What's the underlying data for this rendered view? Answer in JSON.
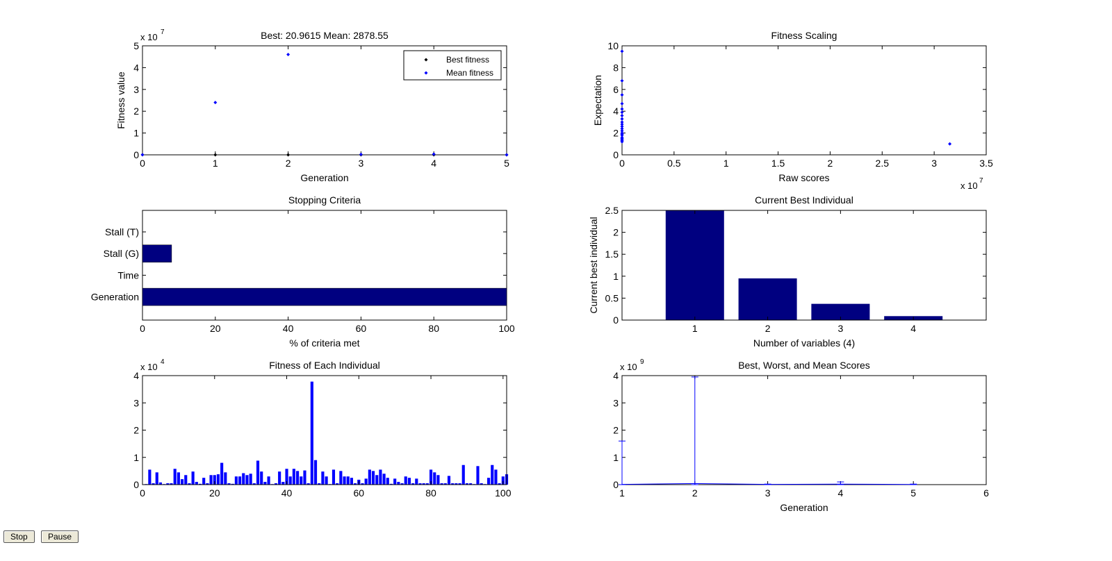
{
  "buttons": {
    "stop": "Stop",
    "pause": "Pause"
  },
  "chart_data": [
    {
      "id": "fitness-value",
      "type": "scatter",
      "title": "Best: 20.9615 Mean: 2878.55",
      "xlabel": "Generation",
      "ylabel": "Fitness value",
      "y_exponent_label": "x 10",
      "y_exponent": "7",
      "xlim": [
        0,
        5
      ],
      "ylim": [
        0,
        5
      ],
      "xticks": [
        0,
        1,
        2,
        3,
        4,
        5
      ],
      "yticks": [
        0,
        1,
        2,
        3,
        4,
        5
      ],
      "legend_position": "top-right",
      "series": [
        {
          "name": "Best fitness",
          "color": "#000000",
          "x": [
            0,
            1,
            2,
            3,
            4,
            5
          ],
          "y": [
            0.002,
            0.0,
            0.0,
            0.0,
            0.0,
            0.0
          ]
        },
        {
          "name": "Mean fitness",
          "color": "#0000ff",
          "x": [
            0,
            1,
            2,
            3,
            4,
            5
          ],
          "y": [
            0.002,
            2.4,
            4.6,
            0.02,
            0.03,
            0.0003
          ]
        }
      ]
    },
    {
      "id": "fitness-scaling",
      "type": "scatter",
      "title": "Fitness Scaling",
      "xlabel": "Raw scores",
      "ylabel": "Expectation",
      "x_exponent_label": "x 10",
      "x_exponent": "7",
      "xlim": [
        0,
        3.5
      ],
      "ylim": [
        0,
        10
      ],
      "xticks": [
        0,
        0.5,
        1,
        1.5,
        2,
        2.5,
        3,
        3.5
      ],
      "yticks": [
        0,
        2,
        4,
        6,
        8,
        10
      ],
      "color": "#0000ff",
      "x": [
        0,
        0,
        0,
        0,
        0,
        0,
        0,
        0,
        0,
        0,
        0,
        0,
        0,
        0,
        0,
        0,
        0,
        0,
        0,
        0,
        0,
        3.15
      ],
      "y": [
        9.5,
        6.8,
        5.5,
        4.7,
        4.2,
        3.9,
        3.6,
        3.3,
        3.0,
        2.8,
        2.6,
        2.4,
        2.2,
        2.0,
        1.9,
        1.8,
        1.6,
        1.5,
        1.4,
        1.3,
        1.2,
        1.0
      ]
    },
    {
      "id": "stopping-criteria",
      "type": "bar",
      "orientation": "horizontal",
      "title": "Stopping Criteria",
      "xlabel": "% of criteria met",
      "xlim": [
        0,
        100
      ],
      "xticks": [
        0,
        20,
        40,
        60,
        80,
        100
      ],
      "categories": [
        "Stall (T)",
        "Stall (G)",
        "Time",
        "Generation"
      ],
      "values": [
        0,
        8,
        0,
        100
      ],
      "color": "#000080"
    },
    {
      "id": "current-best",
      "type": "bar",
      "title": "Current Best Individual",
      "xlabel": "Number of variables (4)",
      "ylabel": "Current best individual",
      "xlim": [
        0,
        5
      ],
      "ylim": [
        0,
        2.5
      ],
      "yticks": [
        0,
        0.5,
        1,
        1.5,
        2,
        2.5
      ],
      "categories": [
        "1",
        "2",
        "3",
        "4"
      ],
      "values": [
        2.6,
        0.95,
        0.37,
        0.09
      ],
      "color": "#000080"
    },
    {
      "id": "fitness-each",
      "type": "bar",
      "title": "Fitness of Each Individual",
      "y_exponent_label": "x 10",
      "y_exponent": "4",
      "xlim": [
        0,
        101
      ],
      "ylim": [
        0,
        4
      ],
      "xticks": [
        0,
        20,
        40,
        60,
        80,
        100
      ],
      "yticks": [
        0,
        1,
        2,
        3,
        4
      ],
      "color": "#0000ff",
      "values": [
        0.02,
        0.55,
        0.05,
        0.45,
        0.08,
        0.02,
        0.05,
        0.05,
        0.58,
        0.45,
        0.2,
        0.35,
        0.05,
        0.48,
        0.1,
        0.03,
        0.25,
        0.05,
        0.35,
        0.35,
        0.38,
        0.8,
        0.45,
        0.05,
        0.03,
        0.3,
        0.3,
        0.42,
        0.35,
        0.4,
        0.05,
        0.88,
        0.48,
        0.1,
        0.3,
        0.02,
        0.05,
        0.48,
        0.1,
        0.58,
        0.3,
        0.58,
        0.5,
        0.3,
        0.52,
        0.05,
        3.78,
        0.9,
        0.05,
        0.48,
        0.3,
        0.02,
        0.55,
        0.05,
        0.5,
        0.3,
        0.3,
        0.25,
        0.05,
        0.18,
        0.05,
        0.22,
        0.55,
        0.5,
        0.35,
        0.55,
        0.4,
        0.25,
        0.03,
        0.22,
        0.1,
        0.05,
        0.3,
        0.25,
        0.05,
        0.22,
        0.05,
        0.05,
        0.05,
        0.55,
        0.45,
        0.35,
        0.05,
        0.05,
        0.32,
        0.05,
        0.05,
        0.05,
        0.72,
        0.05,
        0.05,
        0.02,
        0.68,
        0.05,
        0.02,
        0.25,
        0.72,
        0.55,
        0.05,
        0.3,
        0.38
      ]
    },
    {
      "id": "best-worst-mean",
      "type": "line",
      "title": "Best, Worst, and Mean Scores",
      "xlabel": "Generation",
      "y_exponent_label": "x 10",
      "y_exponent": "9",
      "xlim": [
        1,
        6
      ],
      "ylim": [
        0,
        4
      ],
      "xticks": [
        1,
        2,
        3,
        4,
        5,
        6
      ],
      "yticks": [
        0,
        1,
        2,
        3,
        4
      ],
      "color": "#0000ff",
      "x": [
        1,
        2,
        3,
        4,
        5
      ],
      "best": [
        0,
        0,
        0,
        0,
        0
      ],
      "worst": [
        1.6,
        3.95,
        0.02,
        0.1,
        0.02
      ],
      "mean": [
        0.01,
        0.04,
        0.01,
        0.02,
        0.005
      ]
    }
  ]
}
